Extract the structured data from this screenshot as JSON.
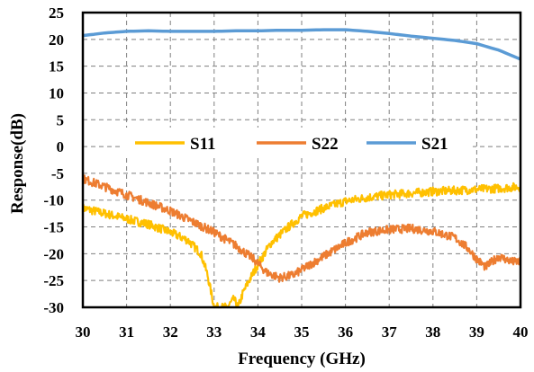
{
  "chart_data": {
    "type": "line",
    "title": "",
    "xlabel": "Frequency (GHz)",
    "ylabel": "Response(dB)",
    "xlim": [
      30,
      40
    ],
    "ylim": [
      -30,
      25
    ],
    "x_ticks": [
      "30",
      "31",
      "32",
      "33",
      "34",
      "35",
      "36",
      "37",
      "38",
      "39",
      "40"
    ],
    "y_ticks": [
      "25",
      "20",
      "15",
      "10",
      "5",
      "0",
      "-5",
      "-10",
      "-15",
      "-20",
      "-25",
      "-30"
    ],
    "grid": "dashed",
    "legend_position": "center",
    "series": [
      {
        "name": "S11",
        "color": "#FFC000",
        "noisy": true,
        "points": [
          [
            30,
            -11.5
          ],
          [
            30.5,
            -12.5
          ],
          [
            31,
            -13.5
          ],
          [
            31.5,
            -14.5
          ],
          [
            32,
            -16
          ],
          [
            32.4,
            -17.5
          ],
          [
            32.7,
            -20
          ],
          [
            32.85,
            -24
          ],
          [
            32.95,
            -28
          ],
          [
            33.0,
            -30
          ],
          [
            33.3,
            -30
          ],
          [
            33.45,
            -28.5
          ],
          [
            33.55,
            -30
          ],
          [
            33.65,
            -27.5
          ],
          [
            33.8,
            -25
          ],
          [
            34.0,
            -22
          ],
          [
            34.3,
            -18
          ],
          [
            34.7,
            -15
          ],
          [
            35,
            -13
          ],
          [
            35.5,
            -11.5
          ],
          [
            36,
            -10.2
          ],
          [
            36.5,
            -9.5
          ],
          [
            37,
            -9
          ],
          [
            37.5,
            -8.7
          ],
          [
            38,
            -8.4
          ],
          [
            38.5,
            -8.2
          ],
          [
            39,
            -8
          ],
          [
            39.5,
            -7.8
          ],
          [
            40,
            -7.5
          ]
        ]
      },
      {
        "name": "S22",
        "color": "#ED7D31",
        "noisy": true,
        "points": [
          [
            30,
            -6
          ],
          [
            30.5,
            -7.5
          ],
          [
            31,
            -9
          ],
          [
            31.5,
            -10.5
          ],
          [
            32,
            -12
          ],
          [
            32.5,
            -14
          ],
          [
            33,
            -16
          ],
          [
            33.5,
            -18.5
          ],
          [
            33.9,
            -21
          ],
          [
            34.2,
            -23.5
          ],
          [
            34.5,
            -24.5
          ],
          [
            34.8,
            -24
          ],
          [
            35,
            -23
          ],
          [
            35.5,
            -20.5
          ],
          [
            36,
            -18
          ],
          [
            36.5,
            -16
          ],
          [
            37,
            -15.5
          ],
          [
            37.5,
            -15.3
          ],
          [
            38,
            -15.8
          ],
          [
            38.5,
            -17
          ],
          [
            38.8,
            -19
          ],
          [
            39,
            -21
          ],
          [
            39.2,
            -22.5
          ],
          [
            39.5,
            -20.5
          ],
          [
            39.8,
            -21.5
          ],
          [
            40,
            -21.5
          ]
        ]
      },
      {
        "name": "S21",
        "color": "#5B9BD5",
        "noisy": false,
        "points": [
          [
            30,
            20.7
          ],
          [
            30.5,
            21.2
          ],
          [
            31,
            21.5
          ],
          [
            31.5,
            21.6
          ],
          [
            32,
            21.5
          ],
          [
            32.5,
            21.5
          ],
          [
            33,
            21.5
          ],
          [
            33.5,
            21.6
          ],
          [
            34,
            21.6
          ],
          [
            34.5,
            21.7
          ],
          [
            35,
            21.7
          ],
          [
            35.5,
            21.8
          ],
          [
            36,
            21.8
          ],
          [
            36.5,
            21.5
          ],
          [
            37,
            21.1
          ],
          [
            37.5,
            20.6
          ],
          [
            38,
            20.2
          ],
          [
            38.5,
            19.8
          ],
          [
            39,
            19.2
          ],
          [
            39.5,
            18
          ],
          [
            40,
            16.3
          ]
        ]
      }
    ]
  }
}
